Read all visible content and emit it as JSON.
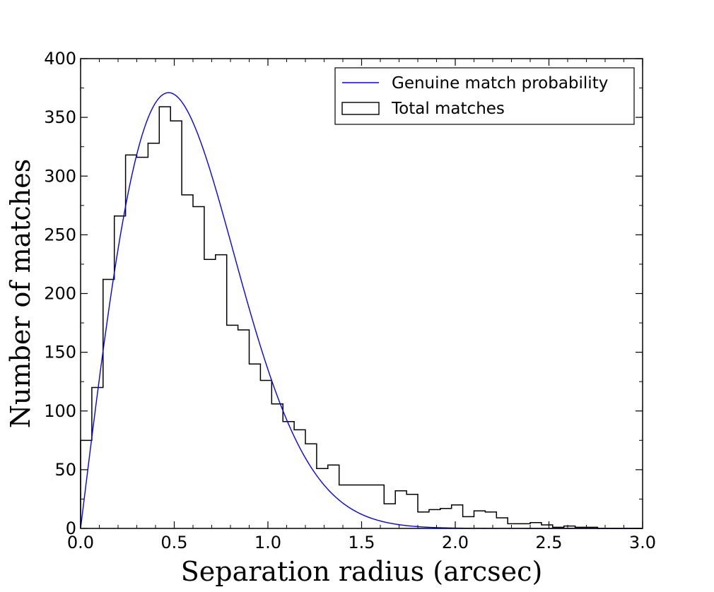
{
  "chart_data": {
    "type": "histogram",
    "title": "",
    "xlabel": "Separation radius (arcsec)",
    "ylabel": "Number of matches",
    "xlim": [
      0.0,
      3.0
    ],
    "ylim": [
      0,
      400
    ],
    "x_ticks": [
      0.0,
      0.5,
      1.0,
      1.5,
      2.0,
      2.5,
      3.0
    ],
    "x_tick_labels": [
      "0.0",
      "0.5",
      "1.0",
      "1.5",
      "2.0",
      "2.5",
      "3.0"
    ],
    "y_ticks": [
      0,
      50,
      100,
      150,
      200,
      250,
      300,
      350,
      400
    ],
    "y_tick_labels": [
      "0",
      "50",
      "100",
      "150",
      "200",
      "250",
      "300",
      "350",
      "400"
    ],
    "legend_position": "top-right",
    "series": [
      {
        "name": "Genuine match probability",
        "kind": "line",
        "color": "#0000ff",
        "model": "rayleigh",
        "amplitude": 371,
        "sigma": 0.47
      },
      {
        "name": "Total matches",
        "kind": "step-histogram",
        "color": "#000000",
        "bin_start": 0.0,
        "bin_width": 0.06,
        "values": [
          75,
          120,
          212,
          266,
          318,
          316,
          328,
          359,
          347,
          284,
          274,
          229,
          233,
          173,
          169,
          140,
          126,
          106,
          91,
          84,
          72,
          51,
          54,
          37,
          37,
          37,
          37,
          21,
          32,
          29,
          14,
          16,
          17,
          20,
          10,
          15,
          14,
          9,
          4,
          4,
          5,
          3,
          1,
          2,
          1,
          1,
          0,
          0,
          0,
          0
        ]
      }
    ]
  }
}
